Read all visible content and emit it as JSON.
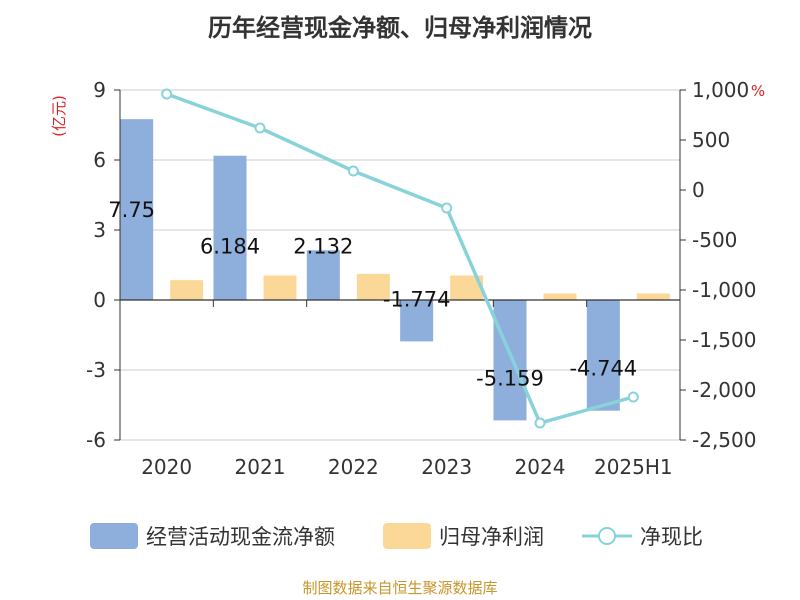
{
  "source_text": "制图数据来自恒生聚源数据库",
  "chart_data": {
    "type": "bar",
    "title": "历年经营现金净额、归母净利润情况",
    "categories": [
      "2020",
      "2021",
      "2022",
      "2023",
      "2024",
      "2025H1"
    ],
    "left_axis": {
      "unit": "(亿元)",
      "range": [
        -6,
        9
      ],
      "ticks": [
        "9",
        "6",
        "3",
        "0",
        "-3",
        "-6"
      ],
      "tick_values": [
        9,
        6,
        3,
        0,
        -3,
        -6
      ]
    },
    "right_axis": {
      "unit": "%",
      "range": [
        -2500,
        1000
      ],
      "ticks": [
        "1,000",
        "500",
        "0",
        "-500",
        "-1,000",
        "-1,500",
        "-2,000",
        "-2,500"
      ],
      "tick_values": [
        1000,
        500,
        0,
        -500,
        -1000,
        -1500,
        -2000,
        -2500
      ]
    },
    "grid": true,
    "legend_position": "bottom",
    "series": [
      {
        "name": "经营活动现金流净额",
        "kind": "bar",
        "axis": "left",
        "color": "#8eaedb",
        "values": [
          7.75,
          6.184,
          2.132,
          -1.774,
          -5.159,
          -4.744
        ],
        "labels": [
          "7.75",
          "6.184",
          "2.132",
          "-1.774",
          "-5.159",
          "-4.744"
        ]
      },
      {
        "name": "归母净利润",
        "kind": "bar",
        "axis": "left",
        "color": "#fcd898",
        "values": [
          0.85,
          1.05,
          1.12,
          1.05,
          0.28,
          0.28
        ]
      },
      {
        "name": "净现比",
        "kind": "line",
        "axis": "right",
        "color": "#88d3d9",
        "values": [
          960,
          620,
          190,
          -180,
          -2330,
          -2070
        ]
      }
    ]
  }
}
